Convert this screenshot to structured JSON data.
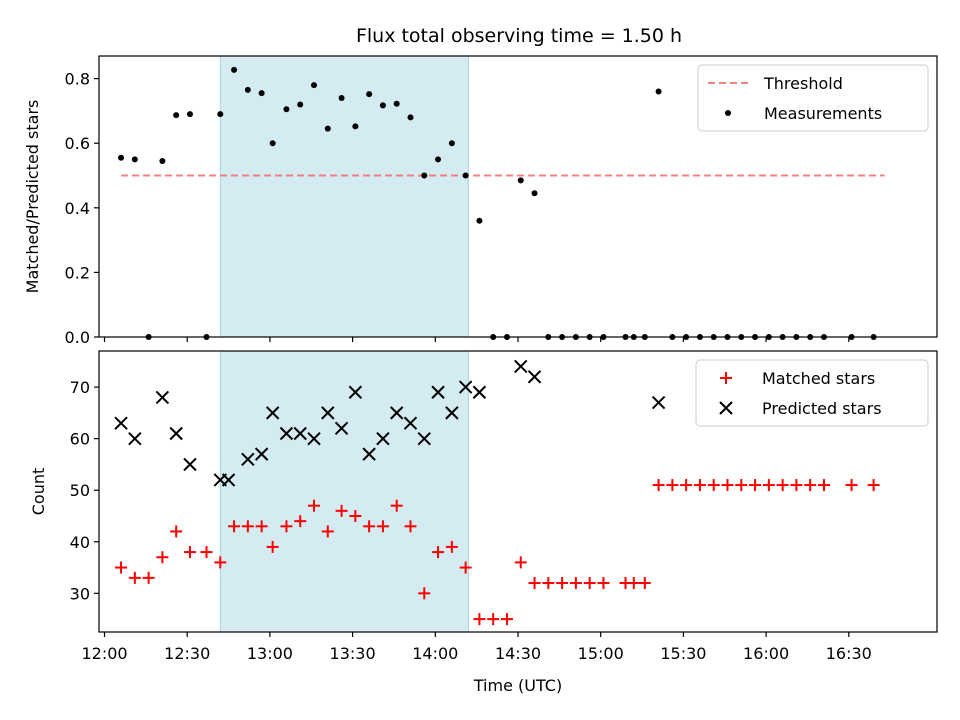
{
  "figure_title": "Flux total observing time = 1.50 h",
  "chart_data": [
    {
      "type": "scatter",
      "ylabel": "Matched/Predicted stars",
      "ylim": [
        0,
        0.87
      ],
      "yticks": [
        0.0,
        0.2,
        0.4,
        0.6,
        0.8
      ],
      "ytick_labels": [
        "0.0",
        "0.2",
        "0.4",
        "0.6",
        "0.8"
      ],
      "xlim": [
        "11:58",
        "17:02"
      ],
      "highlight_span": [
        "12:42",
        "14:12"
      ],
      "highlight_color": "#d4ebf1",
      "threshold": {
        "name": "Threshold",
        "value": 0.5,
        "x_start": "12:06",
        "x_end": "16:43",
        "color": "#f08080",
        "style": "dashed"
      },
      "series": [
        {
          "name": "Measurements",
          "marker": "dot",
          "color": "#000000",
          "points": [
            [
              "12:06",
              0.555
            ],
            [
              "12:11",
              0.55
            ],
            [
              "12:16",
              0.0
            ],
            [
              "12:21",
              0.545
            ],
            [
              "12:26",
              0.687
            ],
            [
              "12:31",
              0.69
            ],
            [
              "12:37",
              0.0
            ],
            [
              "12:42",
              0.69
            ],
            [
              "12:47",
              0.827
            ],
            [
              "12:52",
              0.765
            ],
            [
              "12:57",
              0.755
            ],
            [
              "13:01",
              0.6
            ],
            [
              "13:06",
              0.705
            ],
            [
              "13:11",
              0.72
            ],
            [
              "13:16",
              0.78
            ],
            [
              "13:21",
              0.645
            ],
            [
              "13:26",
              0.74
            ],
            [
              "13:31",
              0.652
            ],
            [
              "13:36",
              0.752
            ],
            [
              "13:41",
              0.717
            ],
            [
              "13:46",
              0.722
            ],
            [
              "13:51",
              0.68
            ],
            [
              "13:56",
              0.5
            ],
            [
              "14:01",
              0.55
            ],
            [
              "14:06",
              0.6
            ],
            [
              "14:11",
              0.5
            ],
            [
              "14:16",
              0.36
            ],
            [
              "14:21",
              0.0
            ],
            [
              "14:26",
              0.0
            ],
            [
              "14:31",
              0.485
            ],
            [
              "14:36",
              0.445
            ],
            [
              "14:41",
              0.0
            ],
            [
              "14:46",
              0.0
            ],
            [
              "14:51",
              0.0
            ],
            [
              "14:56",
              0.0
            ],
            [
              "15:01",
              0.0
            ],
            [
              "15:09",
              0.0
            ],
            [
              "15:12",
              0.0
            ],
            [
              "15:16",
              0.0
            ],
            [
              "15:21",
              0.76
            ],
            [
              "15:26",
              0.0
            ],
            [
              "15:31",
              0.0
            ],
            [
              "15:36",
              0.0
            ],
            [
              "15:41",
              0.0
            ],
            [
              "15:46",
              0.0
            ],
            [
              "15:51",
              0.0
            ],
            [
              "15:56",
              0.0
            ],
            [
              "16:01",
              0.0
            ],
            [
              "16:06",
              0.0
            ],
            [
              "16:11",
              0.0
            ],
            [
              "16:16",
              0.0
            ],
            [
              "16:21",
              0.0
            ],
            [
              "16:31",
              0.0
            ],
            [
              "16:39",
              0.0
            ]
          ]
        }
      ],
      "legend": {
        "position": "top-right",
        "entries": [
          "Threshold",
          "Measurements"
        ]
      }
    },
    {
      "type": "scatter",
      "xlabel": "Time (UTC)",
      "ylabel": "Count",
      "ylim": [
        22.5,
        77.0
      ],
      "yticks": [
        30,
        40,
        50,
        60,
        70
      ],
      "ytick_labels": [
        "30",
        "40",
        "50",
        "60",
        "70"
      ],
      "xlim": [
        "11:58",
        "17:02"
      ],
      "xticks": [
        "12:00",
        "12:30",
        "13:00",
        "13:30",
        "14:00",
        "14:30",
        "15:00",
        "15:30",
        "16:00",
        "16:30"
      ],
      "xtick_labels": [
        "12:00",
        "12:30",
        "13:00",
        "13:30",
        "14:00",
        "14:30",
        "15:00",
        "15:30",
        "16:00",
        "16:30"
      ],
      "highlight_span": [
        "12:42",
        "14:12"
      ],
      "highlight_color": "#d4ebf1",
      "series": [
        {
          "name": "Matched stars",
          "marker": "plus",
          "color": "#ff0000",
          "points": [
            [
              "12:06",
              35
            ],
            [
              "12:11",
              33
            ],
            [
              "12:16",
              33
            ],
            [
              "12:21",
              37
            ],
            [
              "12:26",
              42
            ],
            [
              "12:31",
              38
            ],
            [
              "12:37",
              38
            ],
            [
              "12:42",
              36
            ],
            [
              "12:47",
              43
            ],
            [
              "12:52",
              43
            ],
            [
              "12:57",
              43
            ],
            [
              "13:01",
              39
            ],
            [
              "13:06",
              43
            ],
            [
              "13:11",
              44
            ],
            [
              "13:16",
              47
            ],
            [
              "13:21",
              42
            ],
            [
              "13:26",
              46
            ],
            [
              "13:31",
              45
            ],
            [
              "13:36",
              43
            ],
            [
              "13:41",
              43
            ],
            [
              "13:46",
              47
            ],
            [
              "13:51",
              43
            ],
            [
              "13:56",
              30
            ],
            [
              "14:01",
              38
            ],
            [
              "14:06",
              39
            ],
            [
              "14:11",
              35
            ],
            [
              "14:16",
              25
            ],
            [
              "14:21",
              25
            ],
            [
              "14:26",
              25
            ],
            [
              "14:31",
              36
            ],
            [
              "14:36",
              32
            ],
            [
              "14:41",
              32
            ],
            [
              "14:46",
              32
            ],
            [
              "14:51",
              32
            ],
            [
              "14:56",
              32
            ],
            [
              "15:01",
              32
            ],
            [
              "15:09",
              32
            ],
            [
              "15:12",
              32
            ],
            [
              "15:16",
              32
            ],
            [
              "15:21",
              51
            ],
            [
              "15:26",
              51
            ],
            [
              "15:31",
              51
            ],
            [
              "15:36",
              51
            ],
            [
              "15:41",
              51
            ],
            [
              "15:46",
              51
            ],
            [
              "15:51",
              51
            ],
            [
              "15:56",
              51
            ],
            [
              "16:01",
              51
            ],
            [
              "16:06",
              51
            ],
            [
              "16:11",
              51
            ],
            [
              "16:16",
              51
            ],
            [
              "16:21",
              51
            ],
            [
              "16:31",
              51
            ],
            [
              "16:39",
              51
            ]
          ]
        },
        {
          "name": "Predicted stars",
          "marker": "x",
          "color": "#000000",
          "points": [
            [
              "12:06",
              63
            ],
            [
              "12:11",
              60
            ],
            [
              "12:21",
              68
            ],
            [
              "12:26",
              61
            ],
            [
              "12:31",
              55
            ],
            [
              "12:42",
              52
            ],
            [
              "12:45",
              52
            ],
            [
              "12:52",
              56
            ],
            [
              "12:57",
              57
            ],
            [
              "13:01",
              65
            ],
            [
              "13:06",
              61
            ],
            [
              "13:11",
              61
            ],
            [
              "13:16",
              60
            ],
            [
              "13:21",
              65
            ],
            [
              "13:26",
              62
            ],
            [
              "13:31",
              69
            ],
            [
              "13:36",
              57
            ],
            [
              "13:41",
              60
            ],
            [
              "13:46",
              65
            ],
            [
              "13:51",
              63
            ],
            [
              "13:56",
              60
            ],
            [
              "14:01",
              69
            ],
            [
              "14:06",
              65
            ],
            [
              "14:11",
              70
            ],
            [
              "14:16",
              69
            ],
            [
              "14:31",
              74
            ],
            [
              "14:36",
              72
            ],
            [
              "15:21",
              67
            ]
          ]
        }
      ],
      "legend": {
        "position": "top-right",
        "entries": [
          "Matched stars",
          "Predicted stars"
        ]
      }
    }
  ]
}
